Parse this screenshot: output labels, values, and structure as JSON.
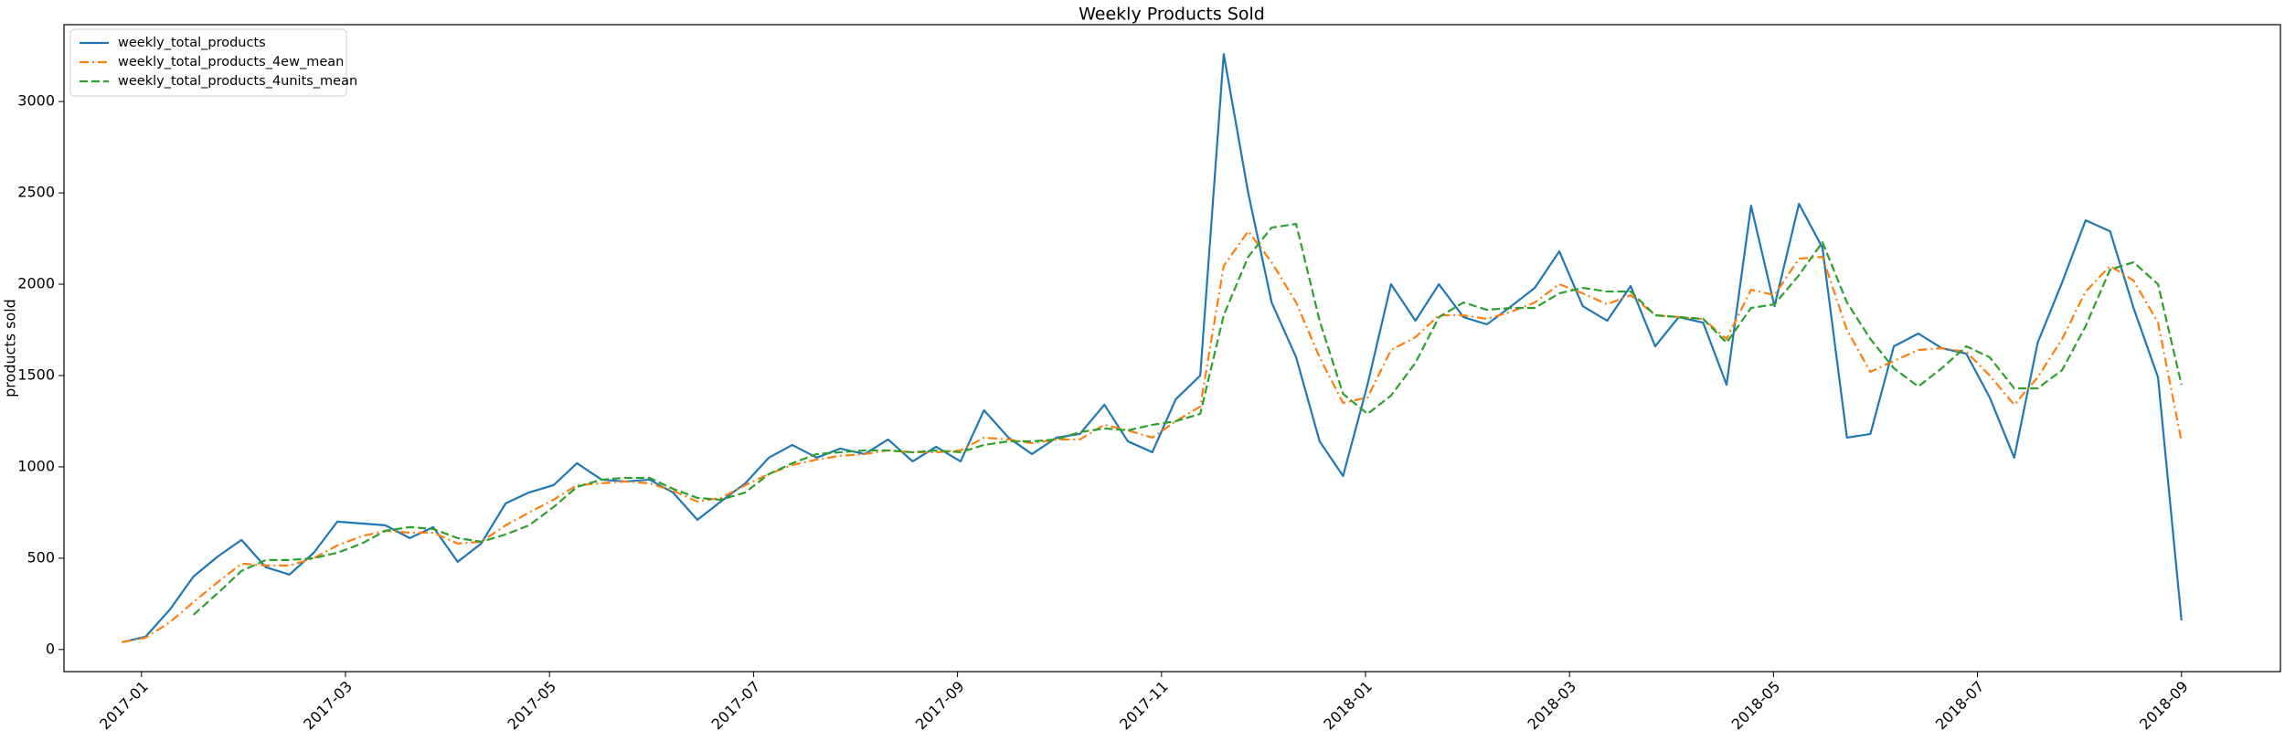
{
  "chart_data": {
    "type": "line",
    "title": "Weekly Products Sold",
    "ylabel": "products sold",
    "x": [
      -0.19,
      0.04,
      0.28,
      0.51,
      0.75,
      0.98,
      1.22,
      1.45,
      1.69,
      1.92,
      2.16,
      2.39,
      2.63,
      2.86,
      3.1,
      3.33,
      3.57,
      3.8,
      4.04,
      4.27,
      4.51,
      4.74,
      4.98,
      5.21,
      5.45,
      5.68,
      5.92,
      6.15,
      6.38,
      6.62,
      6.85,
      7.09,
      7.32,
      7.56,
      7.79,
      8.03,
      8.26,
      8.5,
      8.73,
      8.97,
      9.2,
      9.44,
      9.67,
      9.91,
      10.14,
      10.38,
      10.61,
      10.85,
      11.08,
      11.32,
      11.55,
      11.78,
      12.02,
      12.25,
      12.49,
      12.72,
      12.96,
      13.19,
      13.43,
      13.66,
      13.9,
      14.13,
      14.37,
      14.6,
      14.84,
      15.07,
      15.31,
      15.54,
      15.78,
      16.01,
      16.25,
      16.48,
      16.72,
      16.95,
      17.18,
      17.42,
      17.65,
      17.89,
      18.12,
      18.36,
      18.59,
      18.83,
      19.06,
      19.3,
      19.53,
      19.77,
      20.0
    ],
    "series": [
      {
        "name": "weekly_total_products",
        "color": "#1f77b4",
        "linestyle": "solid",
        "values": [
          40,
          70,
          220,
          400,
          510,
          600,
          450,
          410,
          530,
          700,
          690,
          680,
          610,
          670,
          480,
          580,
          800,
          860,
          900,
          1020,
          930,
          920,
          930,
          860,
          710,
          810,
          910,
          1050,
          1120,
          1050,
          1100,
          1070,
          1150,
          1030,
          1110,
          1030,
          1310,
          1160,
          1070,
          1160,
          1180,
          1340,
          1140,
          1080,
          1370,
          1500,
          3260,
          2500,
          1900,
          1600,
          1140,
          950,
          1450,
          2000,
          1800,
          2000,
          1820,
          1780,
          1880,
          1980,
          2180,
          1880,
          1800,
          1990,
          1660,
          1820,
          1790,
          1450,
          2430,
          1880,
          2440,
          2200,
          1160,
          1180,
          1660,
          1730,
          1650,
          1620,
          1380,
          1050,
          1680,
          2010,
          2350,
          2290,
          1870,
          1490,
          160
        ]
      },
      {
        "name": "weekly_total_products_4ew_mean",
        "color": "#ff7f0e",
        "linestyle": "dashdot",
        "values": [
          40,
          65,
          150,
          260,
          370,
          470,
          460,
          460,
          500,
          570,
          620,
          650,
          640,
          640,
          580,
          590,
          680,
          750,
          820,
          900,
          910,
          920,
          910,
          870,
          810,
          830,
          900,
          960,
          1010,
          1040,
          1060,
          1070,
          1090,
          1080,
          1080,
          1090,
          1160,
          1150,
          1130,
          1150,
          1150,
          1230,
          1200,
          1160,
          1250,
          1330,
          2100,
          2290,
          2120,
          1900,
          1600,
          1350,
          1380,
          1640,
          1710,
          1830,
          1830,
          1810,
          1850,
          1900,
          2000,
          1950,
          1890,
          1940,
          1830,
          1820,
          1810,
          1700,
          1970,
          1940,
          2140,
          2150,
          1750,
          1520,
          1580,
          1640,
          1650,
          1630,
          1500,
          1340,
          1490,
          1700,
          1960,
          2100,
          2020,
          1790,
          1140
        ]
      },
      {
        "name": "weekly_total_products_4units_mean",
        "color": "#2ca02c",
        "linestyle": "dashed",
        "values": [
          null,
          null,
          null,
          190,
          310,
          430,
          490,
          490,
          500,
          530,
          580,
          650,
          670,
          660,
          610,
          590,
          630,
          680,
          780,
          890,
          930,
          940,
          940,
          880,
          830,
          820,
          860,
          960,
          1020,
          1070,
          1080,
          1090,
          1090,
          1080,
          1090,
          1080,
          1120,
          1140,
          1140,
          1150,
          1190,
          1210,
          1200,
          1230,
          1250,
          1290,
          1830,
          2150,
          2310,
          2330,
          1800,
          1400,
          1290,
          1390,
          1570,
          1820,
          1900,
          1860,
          1870,
          1870,
          1950,
          1980,
          1960,
          1960,
          1830,
          1820,
          1810,
          1680,
          1870,
          1890,
          2050,
          2230,
          1900,
          1700,
          1540,
          1440,
          1540,
          1660,
          1600,
          1430,
          1430,
          1530,
          1770,
          2080,
          2120,
          2000,
          1450
        ]
      }
    ],
    "xlim": [
      -0.76,
      20.97
    ],
    "xticks": [
      {
        "value": 0,
        "label": "2017-01"
      },
      {
        "value": 2,
        "label": "2017-03"
      },
      {
        "value": 4,
        "label": "2017-05"
      },
      {
        "value": 6,
        "label": "2017-07"
      },
      {
        "value": 8,
        "label": "2017-09"
      },
      {
        "value": 10,
        "label": "2017-11"
      },
      {
        "value": 12,
        "label": "2018-01"
      },
      {
        "value": 14,
        "label": "2018-03"
      },
      {
        "value": 16,
        "label": "2018-05"
      },
      {
        "value": 18,
        "label": "2018-07"
      },
      {
        "value": 20,
        "label": "2018-09"
      }
    ],
    "ylim": [
      -121,
      3421
    ],
    "yticks": [
      0,
      500,
      1000,
      1500,
      2000,
      2500,
      3000
    ],
    "legend": "upper left"
  }
}
